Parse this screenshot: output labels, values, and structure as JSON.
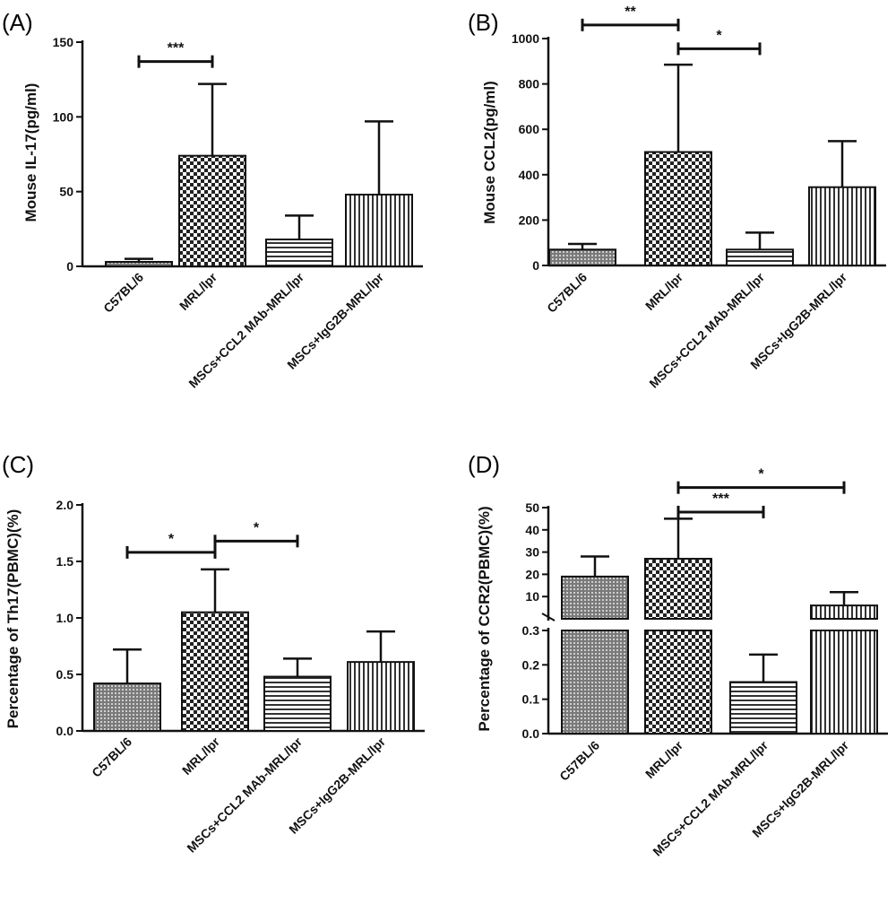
{
  "chart_data": [
    {
      "type": "bar",
      "panel_label": "(A)",
      "ylabel": "Mouse IL-17(pg/ml)",
      "categories": [
        "C57BL/6",
        "MRL/lpr",
        "MSCs+CCL2 MAb-MRL/lpr",
        "MSCs+IgG2B-MRL/lpr"
      ],
      "values": [
        3,
        74,
        18,
        48
      ],
      "error_upper": [
        5,
        122,
        34,
        97
      ],
      "patterns": [
        "dots",
        "checker",
        "hlines",
        "vlines"
      ],
      "ylim": [
        0,
        150
      ],
      "yticks": [
        "0",
        "50",
        "100",
        "150"
      ],
      "significance": [
        {
          "from": 0,
          "to": 1,
          "label": "***",
          "y": 137
        }
      ]
    },
    {
      "type": "bar",
      "panel_label": "(B)",
      "ylabel": "Mouse CCL2(pg/ml)",
      "categories": [
        "C57BL/6",
        "MRL/lpr",
        "MSCs+CCL2 MAb-MRL/lpr",
        "MSCs+IgG2B-MRL/lpr"
      ],
      "values": [
        70,
        500,
        70,
        345
      ],
      "error_upper": [
        95,
        885,
        145,
        548
      ],
      "patterns": [
        "dots",
        "checker",
        "hlines",
        "vlines"
      ],
      "ylim": [
        0,
        1000
      ],
      "yticks": [
        "0",
        "200",
        "400",
        "600",
        "800",
        "1000"
      ],
      "significance": [
        {
          "from": 0,
          "to": 1,
          "label": "**",
          "y": 1060
        },
        {
          "from": 1,
          "to": 2,
          "label": "*",
          "y": 955
        }
      ]
    },
    {
      "type": "bar",
      "panel_label": "(C)",
      "ylabel": "Percentage of Th17(PBMC)(%)",
      "categories": [
        "C57BL/6",
        "MRL/lpr",
        "MSCs+CCL2 MAb-MRL/lpr",
        "MSCs+IgG2B-MRL/lpr"
      ],
      "values": [
        0.42,
        1.05,
        0.48,
        0.61
      ],
      "error_upper": [
        0.72,
        1.43,
        0.64,
        0.88
      ],
      "patterns": [
        "dots",
        "checker",
        "hlines",
        "vlines"
      ],
      "ylim": [
        0,
        2.0
      ],
      "yticks": [
        "0.0",
        "0.5",
        "1.0",
        "1.5",
        "2.0"
      ],
      "significance": [
        {
          "from": 0,
          "to": 1,
          "label": "*",
          "y": 1.58
        },
        {
          "from": 1,
          "to": 2,
          "label": "*",
          "y": 1.68
        }
      ]
    },
    {
      "type": "bar",
      "panel_label": "(D)",
      "ylabel": "Percentage of CCR2(PBMC)(%)",
      "categories": [
        "C57BL/6",
        "MRL/lpr",
        "MSCs+CCL2 MAb-MRL/lpr",
        "MSCs+IgG2B-MRL/lpr"
      ],
      "values": [
        19,
        27,
        0.15,
        6
      ],
      "error_upper": [
        28,
        45,
        0.23,
        12
      ],
      "patterns": [
        "dots",
        "checker",
        "hlines",
        "vlines"
      ],
      "broken_axis": {
        "lower": {
          "ylim": [
            0,
            0.3
          ],
          "yticks": [
            "0.0",
            "0.1",
            "0.2",
            "0.3"
          ]
        },
        "upper": {
          "ylim": [
            0,
            50
          ],
          "yticks": [
            "10",
            "20",
            "30",
            "40",
            "50"
          ]
        }
      },
      "significance": [
        {
          "from": 1,
          "to": 2,
          "label": "***",
          "y": 48
        },
        {
          "from": 1,
          "to": 3,
          "label": "*",
          "y": 59
        }
      ]
    }
  ]
}
